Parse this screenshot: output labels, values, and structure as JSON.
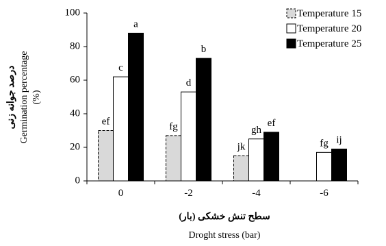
{
  "chart_data": {
    "type": "bar",
    "categories": [
      "0",
      "-2",
      "-4",
      "-6"
    ],
    "series": [
      {
        "name": "Temperature 15",
        "values": [
          30,
          27,
          15,
          0
        ],
        "labels": [
          "ef",
          "fg",
          "jk",
          ""
        ],
        "fill": "#d9d9d9",
        "stroke": "#000000",
        "dashed": true
      },
      {
        "name": "Temperature 20",
        "values": [
          62,
          53,
          25,
          17
        ],
        "labels": [
          "c",
          "d",
          "gh",
          "fg"
        ],
        "fill": "#ffffff",
        "stroke": "#000000",
        "dashed": false
      },
      {
        "name": "Temperature 25",
        "values": [
          88,
          73,
          29,
          19
        ],
        "labels": [
          "a",
          "b",
          "ef",
          "ij"
        ],
        "fill": "#000000",
        "stroke": "#000000",
        "dashed": false
      }
    ],
    "ylim": [
      0,
      100
    ],
    "yticks": [
      0,
      20,
      40,
      60,
      80,
      100
    ],
    "ylabel_fa": "درصد جوانه زنی",
    "ylabel_en": "Germination percentage",
    "ylabel_unit": "(%)",
    "xlabel_fa": "سطح تنش خشکی (بار)",
    "xlabel_en": "Droght stress (bar)",
    "legend_position": "top-right",
    "grid": false
  }
}
